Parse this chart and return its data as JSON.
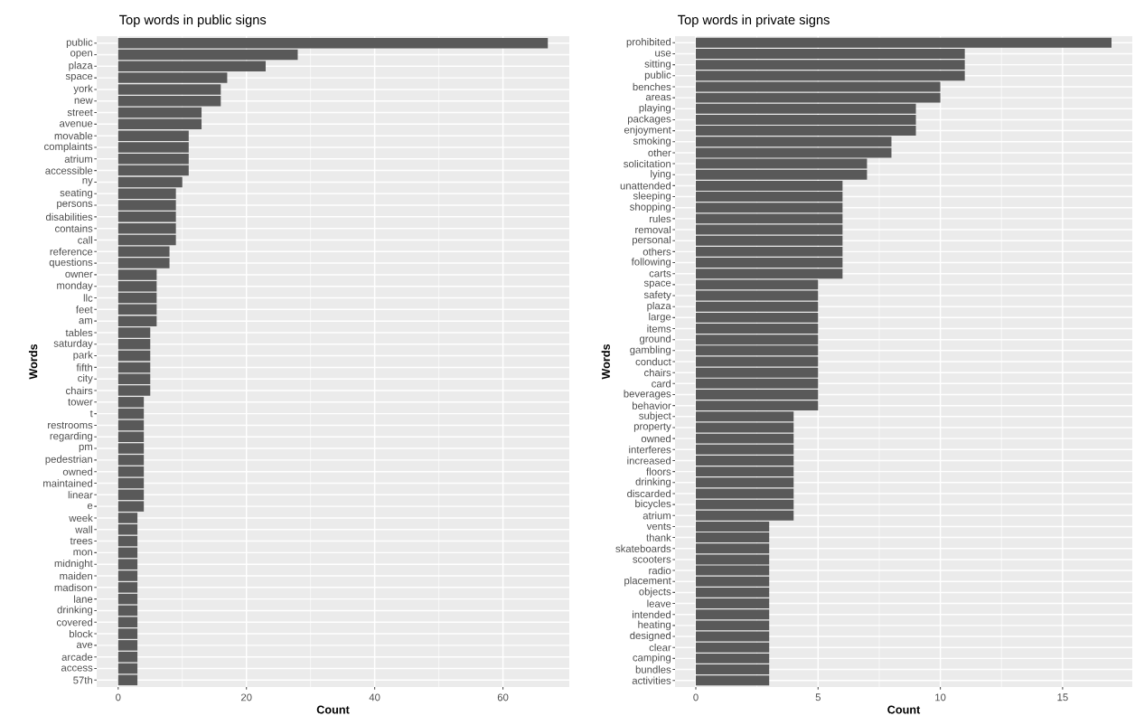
{
  "chart_data": [
    {
      "type": "bar",
      "orientation": "horizontal",
      "title": "Top words in public signs",
      "xlabel": "Count",
      "ylabel": "Words",
      "categories": [
        "public",
        "open",
        "plaza",
        "space",
        "york",
        "new",
        "street",
        "avenue",
        "movable",
        "complaints",
        "atrium",
        "accessible",
        "ny",
        "seating",
        "persons",
        "disabilities",
        "contains",
        "call",
        "reference",
        "questions",
        "owner",
        "monday",
        "llc",
        "feet",
        "am",
        "tables",
        "saturday",
        "park",
        "fifth",
        "city",
        "chairs",
        "tower",
        "t",
        "restrooms",
        "regarding",
        "pm",
        "pedestrian",
        "owned",
        "maintained",
        "linear",
        "e",
        "week",
        "wall",
        "trees",
        "mon",
        "midnight",
        "maiden",
        "madison",
        "lane",
        "drinking",
        "covered",
        "block",
        "ave",
        "arcade",
        "access",
        "57th"
      ],
      "values": [
        67,
        28,
        23,
        17,
        16,
        16,
        13,
        13,
        11,
        11,
        11,
        11,
        10,
        9,
        9,
        9,
        9,
        9,
        8,
        8,
        6,
        6,
        6,
        6,
        6,
        5,
        5,
        5,
        5,
        5,
        5,
        4,
        4,
        4,
        4,
        4,
        4,
        4,
        4,
        4,
        4,
        3,
        3,
        3,
        3,
        3,
        3,
        3,
        3,
        3,
        3,
        3,
        3,
        3,
        3,
        3
      ],
      "color": "#595959",
      "xlim": [
        -3.35,
        70.35
      ],
      "xticks": [
        0,
        20,
        40,
        60
      ],
      "grid": true
    },
    {
      "type": "bar",
      "orientation": "horizontal",
      "title": "Top words in private signs",
      "xlabel": "Count",
      "ylabel": "Words",
      "categories": [
        "prohibited",
        "use",
        "sitting",
        "public",
        "benches",
        "areas",
        "playing",
        "packages",
        "enjoyment",
        "smoking",
        "other",
        "solicitation",
        "lying",
        "unattended",
        "sleeping",
        "shopping",
        "rules",
        "removal",
        "personal",
        "others",
        "following",
        "carts",
        "space",
        "safety",
        "plaza",
        "large",
        "items",
        "ground",
        "gambling",
        "conduct",
        "chairs",
        "card",
        "beverages",
        "behavior",
        "subject",
        "property",
        "owned",
        "interferes",
        "increased",
        "floors",
        "drinking",
        "discarded",
        "bicycles",
        "atrium",
        "vents",
        "thank",
        "skateboards",
        "scooters",
        "radio",
        "placement",
        "objects",
        "leave",
        "intended",
        "heating",
        "designed",
        "clear",
        "camping",
        "bundles",
        "activities"
      ],
      "values": [
        17,
        11,
        11,
        11,
        10,
        10,
        9,
        9,
        9,
        8,
        8,
        7,
        7,
        6,
        6,
        6,
        6,
        6,
        6,
        6,
        6,
        6,
        5,
        5,
        5,
        5,
        5,
        5,
        5,
        5,
        5,
        5,
        5,
        5,
        4,
        4,
        4,
        4,
        4,
        4,
        4,
        4,
        4,
        4,
        3,
        3,
        3,
        3,
        3,
        3,
        3,
        3,
        3,
        3,
        3,
        3,
        3,
        3,
        3
      ],
      "color": "#595959",
      "xlim": [
        -0.85,
        17.85
      ],
      "xticks": [
        0,
        5,
        10,
        15
      ],
      "grid": true
    }
  ]
}
